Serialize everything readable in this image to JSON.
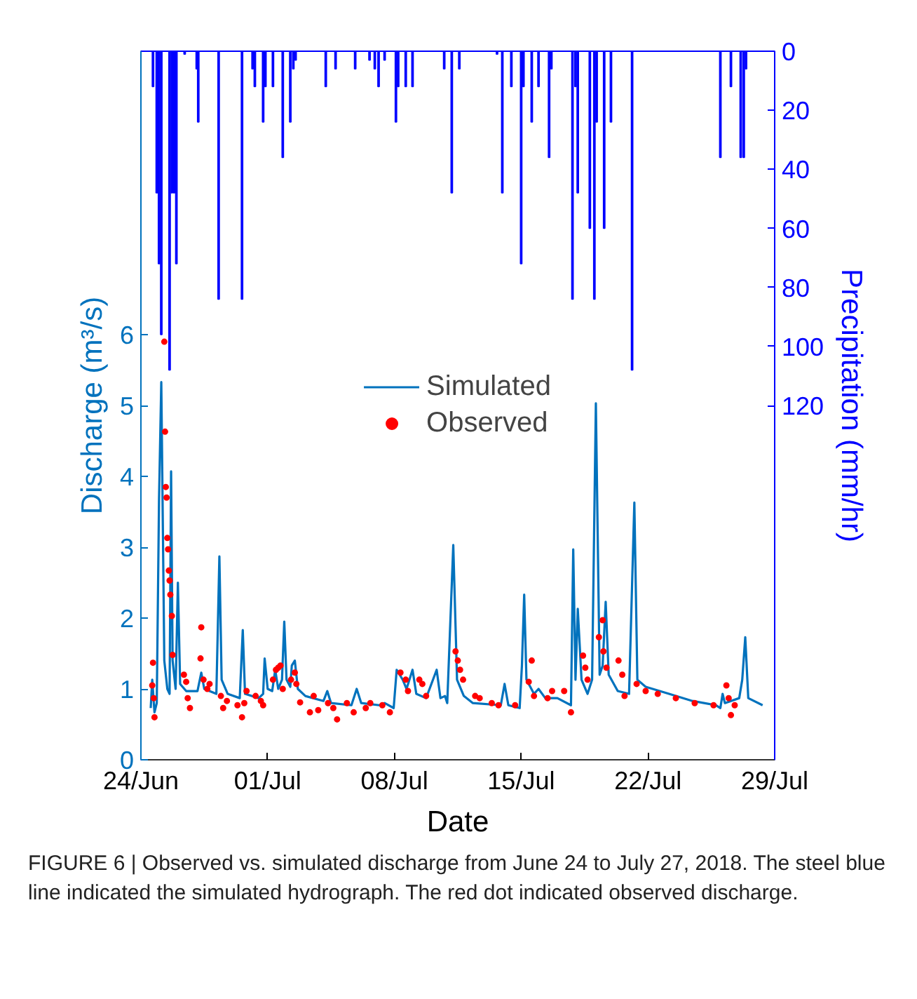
{
  "chart_data": {
    "type": "line",
    "xlabel": "Date",
    "ylabel": "Discharge (m³/s)",
    "y2label": "Precipitation (mm/hr)",
    "xlim": [
      "2018-06-24",
      "2018-07-29"
    ],
    "xticks": [
      {
        "value": "2018-06-24",
        "label": "24/Jun"
      },
      {
        "value": "2018-07-01",
        "label": "01/Jul"
      },
      {
        "value": "2018-07-08",
        "label": "08/Jul"
      },
      {
        "value": "2018-07-15",
        "label": "15/Jul"
      },
      {
        "value": "2018-07-22",
        "label": "22/Jul"
      },
      {
        "value": "2018-07-29",
        "label": "29/Jul"
      }
    ],
    "ylim": [
      0,
      10
    ],
    "yticks": [
      0,
      1,
      2,
      3,
      4,
      5,
      6
    ],
    "y2lim": [
      240,
      0
    ],
    "y2ticks": [
      0,
      20,
      40,
      60,
      80,
      100,
      120
    ],
    "grid": false,
    "legend": "center",
    "annotations": [
      "FIGURE 6 | Observed vs. simulated discharge from June 24 to July 27, 2018. The steel blue line indicated the simulated hydrograph. The red dot indicated observed discharge."
    ],
    "series": [
      {
        "name": "Simulated",
        "color": "#0072bd",
        "line_style": "solid",
        "x": [
          "2018-06-24T13:00",
          "2018-06-24T15:00",
          "2018-06-24T18:00",
          "2018-06-24T21:00",
          "2018-06-25T00:00",
          "2018-06-25T03:00",
          "2018-06-25T07:00",
          "2018-06-25T11:00",
          "2018-06-25T14:00",
          "2018-06-25T16:00",
          "2018-06-25T18:00",
          "2018-06-25T22:00",
          "2018-06-26T01:00",
          "2018-06-26T04:00",
          "2018-06-26T12:00",
          "2018-06-27T03:00",
          "2018-06-27T08:00",
          "2018-06-27T12:00",
          "2018-06-28T04:00",
          "2018-06-28T08:00",
          "2018-06-28T11:00",
          "2018-06-28T19:00",
          "2018-06-29T11:00",
          "2018-06-29T15:00",
          "2018-06-29T18:00",
          "2018-06-30T12:00",
          "2018-06-30T18:00",
          "2018-06-30T20:00",
          "2018-07-01T00:00",
          "2018-07-01T06:00",
          "2018-07-01T10:00",
          "2018-07-01T14:00",
          "2018-07-01T19:00",
          "2018-07-01T22:00",
          "2018-07-02T01:00",
          "2018-07-02T06:00",
          "2018-07-02T08:00",
          "2018-07-02T12:00",
          "2018-07-02T16:00",
          "2018-07-03T02:00",
          "2018-07-04T02:00",
          "2018-07-04T07:00",
          "2018-07-04T12:00",
          "2018-07-05T15:00",
          "2018-07-05T22:00",
          "2018-07-06T04:00",
          "2018-07-07T04:00",
          "2018-07-07T11:00",
          "2018-07-07T23:00",
          "2018-07-08T03:00",
          "2018-07-08T11:00",
          "2018-07-08T16:00",
          "2018-07-09T00:00",
          "2018-07-09T05:00",
          "2018-07-09T18:00",
          "2018-07-10T08:00",
          "2018-07-10T13:00",
          "2018-07-10T19:00",
          "2018-07-10T22:00",
          "2018-07-11T06:00",
          "2018-07-11T11:00",
          "2018-07-11T20:00",
          "2018-07-12T08:00",
          "2018-07-13T21:00",
          "2018-07-14T02:00",
          "2018-07-14T07:00",
          "2018-07-14T22:00",
          "2018-07-15T01:00",
          "2018-07-15T04:00",
          "2018-07-15T07:00",
          "2018-07-15T17:00",
          "2018-07-15T23:00",
          "2018-07-16T08:00",
          "2018-07-17T00:00",
          "2018-07-17T18:00",
          "2018-07-17T21:00",
          "2018-07-18T00:00",
          "2018-07-18T03:00",
          "2018-07-18T08:00",
          "2018-07-18T16:00",
          "2018-07-18T22:00",
          "2018-07-19T03:00",
          "2018-07-19T08:00",
          "2018-07-19T12:00",
          "2018-07-19T16:00",
          "2018-07-19T20:00",
          "2018-07-20T08:00",
          "2018-07-20T23:00",
          "2018-07-21T06:00",
          "2018-07-21T10:00",
          "2018-07-21T21:00",
          "2018-07-23T04:00",
          "2018-07-24T11:00",
          "2018-07-25T18:00",
          "2018-07-26T00:00",
          "2018-07-26T03:00",
          "2018-07-26T06:00",
          "2018-07-27T01:00",
          "2018-07-27T05:00",
          "2018-07-27T09:00",
          "2018-07-27T13:00",
          "2018-07-28T08:00"
        ],
        "values": [
          0.73,
          1.13,
          0.67,
          0.8,
          3.67,
          5.33,
          1.4,
          1.0,
          0.93,
          4.07,
          1.4,
          1.0,
          2.5,
          1.07,
          0.97,
          0.97,
          1.23,
          1.0,
          0.93,
          2.87,
          1.13,
          0.93,
          0.87,
          1.83,
          0.93,
          0.87,
          0.93,
          1.43,
          1.0,
          0.97,
          1.27,
          1.0,
          1.13,
          1.95,
          1.13,
          1.03,
          1.33,
          1.4,
          1.0,
          0.9,
          0.83,
          0.97,
          0.8,
          0.77,
          1.0,
          0.8,
          0.77,
          0.8,
          0.73,
          1.27,
          1.13,
          1.0,
          1.27,
          0.93,
          0.87,
          1.27,
          0.87,
          0.9,
          0.8,
          3.03,
          1.13,
          0.9,
          0.8,
          0.77,
          1.07,
          0.77,
          0.73,
          1.33,
          2.33,
          1.13,
          0.93,
          1.0,
          0.87,
          0.87,
          0.77,
          2.97,
          1.13,
          2.13,
          1.13,
          0.93,
          1.13,
          5.03,
          1.2,
          1.33,
          2.23,
          1.2,
          0.97,
          0.93,
          3.63,
          1.13,
          1.03,
          0.93,
          0.83,
          0.77,
          0.73,
          0.93,
          0.8,
          0.87,
          1.13,
          1.73,
          0.87,
          0.77
        ]
      },
      {
        "name": "Observed",
        "type": "scatter",
        "color": "#ff0000",
        "marker": "circle",
        "x": [
          "2018-06-24T15:00",
          "2018-06-24T16:00",
          "2018-06-24T17:00",
          "2018-06-24T18:00",
          "2018-06-25T07:00",
          "2018-06-25T08:00",
          "2018-06-25T09:00",
          "2018-06-25T10:00",
          "2018-06-25T11:00",
          "2018-06-25T12:00",
          "2018-06-25T13:00",
          "2018-06-25T14:00",
          "2018-06-25T15:00",
          "2018-06-25T17:00",
          "2018-06-25T18:00",
          "2018-06-26T09:00",
          "2018-06-26T12:00",
          "2018-06-26T14:00",
          "2018-06-26T17:00",
          "2018-06-27T07:00",
          "2018-06-27T08:00",
          "2018-06-27T11:00",
          "2018-06-27T16:00",
          "2018-06-27T19:00",
          "2018-06-28T10:00",
          "2018-06-28T13:00",
          "2018-06-28T18:00",
          "2018-06-29T08:00",
          "2018-06-29T14:00",
          "2018-06-29T17:00",
          "2018-06-29T20:00",
          "2018-06-30T08:00",
          "2018-06-30T15:00",
          "2018-06-30T18:00",
          "2018-07-01T07:00",
          "2018-07-01T11:00",
          "2018-07-01T14:00",
          "2018-07-01T17:00",
          "2018-07-01T20:00",
          "2018-07-02T07:00",
          "2018-07-02T12:00",
          "2018-07-02T14:00",
          "2018-07-02T19:00",
          "2018-07-03T08:00",
          "2018-07-03T13:00",
          "2018-07-03T19:00",
          "2018-07-04T08:00",
          "2018-07-04T15:00",
          "2018-07-04T20:00",
          "2018-07-05T09:00",
          "2018-07-05T18:00",
          "2018-07-06T10:00",
          "2018-07-06T16:00",
          "2018-07-07T08:00",
          "2018-07-07T18:00",
          "2018-07-08T08:00",
          "2018-07-08T15:00",
          "2018-07-08T18:00",
          "2018-07-09T09:00",
          "2018-07-09T13:00",
          "2018-07-09T18:00",
          "2018-07-11T09:00",
          "2018-07-11T12:00",
          "2018-07-11T15:00",
          "2018-07-11T19:00",
          "2018-07-12T11:00",
          "2018-07-12T17:00",
          "2018-07-13T09:00",
          "2018-07-13T18:00",
          "2018-07-14T16:00",
          "2018-07-15T10:00",
          "2018-07-15T14:00",
          "2018-07-15T17:00",
          "2018-07-16T11:00",
          "2018-07-16T17:00",
          "2018-07-17T09:00",
          "2018-07-17T18:00",
          "2018-07-18T10:00",
          "2018-07-18T13:00",
          "2018-07-18T16:00",
          "2018-07-19T07:00",
          "2018-07-19T12:00",
          "2018-07-19T13:00",
          "2018-07-19T17:00",
          "2018-07-20T09:00",
          "2018-07-20T14:00",
          "2018-07-20T17:00",
          "2018-07-21T09:00",
          "2018-07-21T21:00",
          "2018-07-22T13:00",
          "2018-07-23T13:00",
          "2018-07-24T14:00",
          "2018-07-25T15:00",
          "2018-07-26T08:00",
          "2018-07-26T11:00",
          "2018-07-26T14:00",
          "2018-07-26T19:00"
        ],
        "values": [
          1.05,
          1.37,
          0.87,
          0.6,
          5.9,
          4.63,
          3.85,
          3.7,
          3.13,
          2.97,
          2.67,
          2.53,
          2.33,
          2.03,
          1.48,
          1.2,
          1.1,
          0.87,
          0.73,
          1.43,
          1.87,
          1.13,
          1.0,
          1.07,
          0.9,
          0.73,
          0.83,
          0.77,
          0.6,
          0.8,
          0.97,
          0.9,
          0.83,
          0.77,
          1.13,
          1.27,
          1.3,
          1.33,
          1.0,
          1.13,
          1.23,
          1.07,
          0.81,
          0.67,
          0.9,
          0.7,
          0.8,
          0.73,
          0.57,
          0.8,
          0.67,
          0.73,
          0.8,
          0.77,
          0.67,
          1.23,
          1.13,
          0.97,
          1.13,
          1.07,
          0.9,
          1.53,
          1.4,
          1.27,
          1.13,
          0.9,
          0.87,
          0.8,
          0.77,
          0.77,
          1.1,
          1.4,
          0.9,
          0.87,
          0.97,
          0.97,
          0.67,
          1.47,
          1.3,
          1.13,
          1.73,
          1.97,
          1.53,
          1.3,
          1.4,
          1.2,
          0.9,
          1.07,
          0.97,
          0.93,
          0.87,
          0.8,
          0.77,
          1.05,
          0.87,
          0.63,
          0.77
        ]
      },
      {
        "type": "bar",
        "axis": "y2",
        "color": "#0000ff",
        "x": [
          "2018-06-24T16:00",
          "2018-06-24T21:00",
          "2018-06-25T00:00",
          "2018-06-25T03:00",
          "2018-06-25T14:00",
          "2018-06-25T17:00",
          "2018-06-25T20:00",
          "2018-06-25T23:00",
          "2018-06-26T10:00",
          "2018-06-27T02:00",
          "2018-06-27T04:00",
          "2018-06-28T07:00",
          "2018-06-29T14:00",
          "2018-06-30T04:00",
          "2018-06-30T07:00",
          "2018-06-30T18:00",
          "2018-06-30T21:00",
          "2018-07-01T07:00",
          "2018-07-01T20:00",
          "2018-07-02T06:00",
          "2018-07-02T10:00",
          "2018-07-02T13:00",
          "2018-07-04T05:00",
          "2018-07-04T18:00",
          "2018-07-05T20:00",
          "2018-07-06T15:00",
          "2018-07-06T22:00",
          "2018-07-07T03:00",
          "2018-07-07T11:00",
          "2018-07-08T02:00",
          "2018-07-08T05:00",
          "2018-07-08T15:00",
          "2018-07-09T00:00",
          "2018-07-10T18:00",
          "2018-07-11T04:00",
          "2018-07-11T14:00",
          "2018-07-13T16:00",
          "2018-07-13T23:00",
          "2018-07-14T11:00",
          "2018-07-15T00:00",
          "2018-07-15T03:00",
          "2018-07-15T14:00",
          "2018-07-15T23:00",
          "2018-07-16T13:00",
          "2018-07-16T16:00",
          "2018-07-17T20:00",
          "2018-07-18T00:00",
          "2018-07-18T03:00",
          "2018-07-18T19:00",
          "2018-07-19T01:00",
          "2018-07-19T04:00",
          "2018-07-19T14:00",
          "2018-07-19T23:00",
          "2018-07-21T03:00",
          "2018-07-26T00:00",
          "2018-07-26T14:00",
          "2018-07-27T03:00",
          "2018-07-27T07:00",
          "2018-07-27T10:00"
        ],
        "values": [
          12,
          48,
          72,
          96,
          108,
          48,
          48,
          72,
          1,
          6,
          24,
          84,
          84,
          6,
          12,
          24,
          12,
          12,
          36,
          24,
          6,
          3,
          12,
          6,
          6,
          3,
          6,
          12,
          3,
          24,
          12,
          12,
          12,
          6,
          48,
          6,
          1,
          48,
          12,
          72,
          12,
          24,
          12,
          36,
          6,
          84,
          12,
          48,
          60,
          84,
          24,
          60,
          24,
          108,
          36,
          12,
          36,
          36,
          6
        ]
      }
    ]
  }
}
